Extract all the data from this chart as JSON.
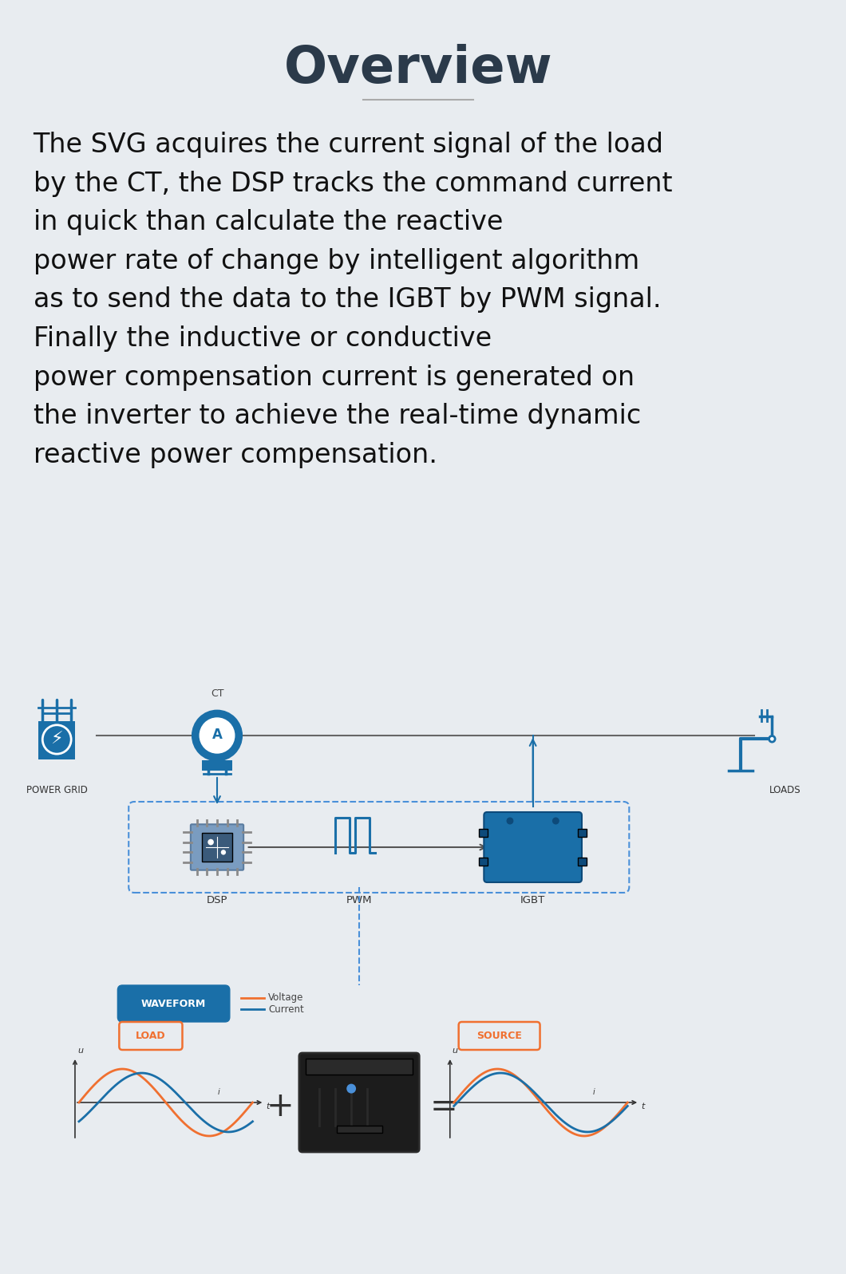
{
  "bg_color": "#e8ecf0",
  "title": "Overview",
  "title_fontsize": 46,
  "title_color": "#2b3a4a",
  "divider_color": "#aaaaaa",
  "body_text": "The SVG acquires the current signal of the load\nby the CT, the DSP tracks the command current\nin quick than calculate the reactive\npower rate of change by intelligent algorithm\nas to send the data to the IGBT by PWM signal.\nFinally the inductive or conductive\npower compensation current is generated on\nthe inverter to achieve the real-time dynamic\nreactive power compensation.",
  "body_fontsize": 24,
  "body_color": "#111111",
  "blue_color": "#1a6fa8",
  "orange_color": "#f07030",
  "dashed_color": "#4a90d9",
  "waveform_label": "WAVEFORM",
  "voltage_label": "Voltage",
  "current_label": "Current",
  "load_label": "LOAD",
  "source_label": "SOURCE",
  "ct_label": "CT",
  "dsp_label": "DSP",
  "pwm_label": "PWM",
  "igbt_label": "IGBT",
  "power_grid_label": "POWER GRID",
  "loads_label": "LOADS",
  "fig_w": 10.6,
  "fig_h": 15.97
}
